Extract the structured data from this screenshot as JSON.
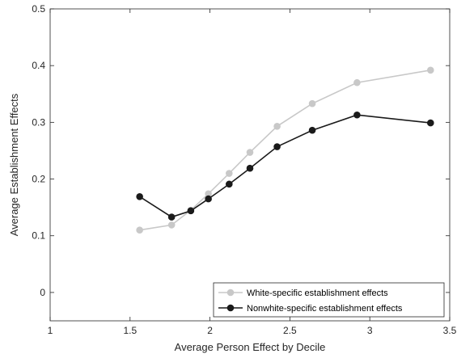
{
  "chart_data": {
    "type": "line",
    "title": "",
    "xlabel": "Average Person Effect by Decile",
    "ylabel": "Average Establishment Effects",
    "xlim": [
      1,
      3.5
    ],
    "ylim": [
      -0.05,
      0.5
    ],
    "xticks": [
      1,
      1.5,
      2,
      2.5,
      3,
      3.5
    ],
    "xtick_labels": [
      "1",
      "1.5",
      "2",
      "2.5",
      "3",
      "3.5"
    ],
    "yticks": [
      0,
      0.1,
      0.2,
      0.3,
      0.4,
      0.5
    ],
    "ytick_labels": [
      "0",
      "0.1",
      "0.2",
      "0.3",
      "0.4",
      "0.5"
    ],
    "grid": false,
    "legend_position": "bottom-right",
    "series": [
      {
        "name": "White-specific establishment effects",
        "color": "#c8c8c8",
        "marker": "circle",
        "x": [
          1.56,
          1.76,
          1.88,
          1.99,
          2.12,
          2.25,
          2.42,
          2.64,
          2.92,
          3.38
        ],
        "y": [
          0.11,
          0.119,
          0.145,
          0.174,
          0.21,
          0.247,
          0.293,
          0.333,
          0.37,
          0.392
        ]
      },
      {
        "name": "Nonwhite-specific establishment effects",
        "color": "#1a1a1a",
        "marker": "circle",
        "x": [
          1.56,
          1.76,
          1.88,
          1.99,
          2.12,
          2.25,
          2.42,
          2.64,
          2.92,
          3.38
        ],
        "y": [
          0.169,
          0.133,
          0.144,
          0.165,
          0.191,
          0.219,
          0.257,
          0.286,
          0.313,
          0.299
        ]
      }
    ]
  }
}
